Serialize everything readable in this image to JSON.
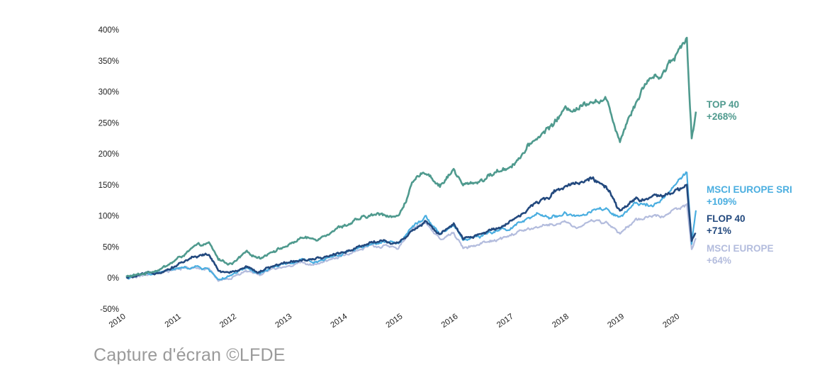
{
  "caption": "Capture d'écran ©LFDE",
  "chart_data": {
    "type": "line",
    "title": "",
    "xlabel": "",
    "ylabel": "",
    "x_tick_labels": [
      "2010",
      "2011",
      "2012",
      "2013",
      "2014",
      "2015",
      "2016",
      "2017",
      "2018",
      "2019",
      "2020"
    ],
    "y_tick_labels": [
      "-50%",
      "0%",
      "50%",
      "100%",
      "150%",
      "200%",
      "250%",
      "300%",
      "350%",
      "400%"
    ],
    "xlim": [
      "2010-01-01",
      "2020-04-15"
    ],
    "ylim": [
      -50,
      400
    ],
    "grid": false,
    "legend": "end-of-line labels on right",
    "series": [
      {
        "name": "TOP 40",
        "end_label": "+268%",
        "color": "#4f9a8e",
        "points": [
          [
            "2010-01-01",
            2
          ],
          [
            "2010-04-01",
            5
          ],
          [
            "2010-07-01",
            12
          ],
          [
            "2010-10-01",
            20
          ],
          [
            "2011-01-01",
            35
          ],
          [
            "2011-04-01",
            50
          ],
          [
            "2011-07-01",
            55
          ],
          [
            "2011-09-01",
            30
          ],
          [
            "2011-12-01",
            22
          ],
          [
            "2012-03-01",
            40
          ],
          [
            "2012-06-01",
            33
          ],
          [
            "2012-09-01",
            45
          ],
          [
            "2012-12-01",
            52
          ],
          [
            "2013-03-01",
            65
          ],
          [
            "2013-06-01",
            62
          ],
          [
            "2013-09-01",
            75
          ],
          [
            "2013-12-01",
            85
          ],
          [
            "2014-03-01",
            92
          ],
          [
            "2014-06-01",
            100
          ],
          [
            "2014-09-01",
            103
          ],
          [
            "2014-12-01",
            98
          ],
          [
            "2015-03-01",
            150
          ],
          [
            "2015-06-01",
            172
          ],
          [
            "2015-09-01",
            150
          ],
          [
            "2015-12-01",
            175
          ],
          [
            "2016-02-01",
            148
          ],
          [
            "2016-06-01",
            158
          ],
          [
            "2016-09-01",
            170
          ],
          [
            "2016-12-01",
            180
          ],
          [
            "2017-03-01",
            200
          ],
          [
            "2017-06-01",
            225
          ],
          [
            "2017-09-01",
            245
          ],
          [
            "2017-12-01",
            270
          ],
          [
            "2018-03-01",
            275
          ],
          [
            "2018-06-01",
            290
          ],
          [
            "2018-09-01",
            285
          ],
          [
            "2018-12-01",
            225
          ],
          [
            "2019-03-01",
            280
          ],
          [
            "2019-06-01",
            320
          ],
          [
            "2019-09-01",
            330
          ],
          [
            "2019-12-01",
            360
          ],
          [
            "2020-02-15",
            390
          ],
          [
            "2020-03-18",
            225
          ],
          [
            "2020-04-15",
            268
          ]
        ]
      },
      {
        "name": "MSCI EUROPE SRI",
        "end_label": "+109%",
        "color": "#4aaee0",
        "points": [
          [
            "2010-01-01",
            0
          ],
          [
            "2010-04-01",
            5
          ],
          [
            "2010-07-01",
            8
          ],
          [
            "2010-10-01",
            12
          ],
          [
            "2011-01-01",
            15
          ],
          [
            "2011-04-01",
            18
          ],
          [
            "2011-07-01",
            14
          ],
          [
            "2011-09-01",
            -2
          ],
          [
            "2011-12-01",
            3
          ],
          [
            "2012-03-01",
            15
          ],
          [
            "2012-06-01",
            6
          ],
          [
            "2012-09-01",
            18
          ],
          [
            "2012-12-01",
            22
          ],
          [
            "2013-03-01",
            28
          ],
          [
            "2013-06-01",
            26
          ],
          [
            "2013-09-01",
            34
          ],
          [
            "2013-12-01",
            40
          ],
          [
            "2014-03-01",
            48
          ],
          [
            "2014-06-01",
            55
          ],
          [
            "2014-09-01",
            57
          ],
          [
            "2014-12-01",
            55
          ],
          [
            "2015-03-01",
            85
          ],
          [
            "2015-06-01",
            100
          ],
          [
            "2015-09-01",
            72
          ],
          [
            "2015-12-01",
            85
          ],
          [
            "2016-02-01",
            62
          ],
          [
            "2016-06-01",
            68
          ],
          [
            "2016-09-01",
            75
          ],
          [
            "2016-12-01",
            80
          ],
          [
            "2017-03-01",
            90
          ],
          [
            "2017-06-01",
            100
          ],
          [
            "2017-09-01",
            98
          ],
          [
            "2017-12-01",
            105
          ],
          [
            "2018-03-01",
            98
          ],
          [
            "2018-06-01",
            108
          ],
          [
            "2018-09-01",
            110
          ],
          [
            "2018-12-01",
            95
          ],
          [
            "2019-03-01",
            115
          ],
          [
            "2019-06-01",
            120
          ],
          [
            "2019-09-01",
            125
          ],
          [
            "2019-12-01",
            148
          ],
          [
            "2020-02-15",
            170
          ],
          [
            "2020-03-18",
            55
          ],
          [
            "2020-04-15",
            109
          ]
        ]
      },
      {
        "name": "FLOP 40",
        "end_label": "+71%",
        "color": "#23497e",
        "points": [
          [
            "2010-01-01",
            0
          ],
          [
            "2010-04-01",
            3
          ],
          [
            "2010-07-01",
            8
          ],
          [
            "2010-10-01",
            15
          ],
          [
            "2011-01-01",
            25
          ],
          [
            "2011-04-01",
            35
          ],
          [
            "2011-07-01",
            38
          ],
          [
            "2011-09-01",
            10
          ],
          [
            "2011-12-01",
            8
          ],
          [
            "2012-03-01",
            20
          ],
          [
            "2012-06-01",
            10
          ],
          [
            "2012-09-01",
            20
          ],
          [
            "2012-12-01",
            25
          ],
          [
            "2013-03-01",
            30
          ],
          [
            "2013-06-01",
            28
          ],
          [
            "2013-09-01",
            35
          ],
          [
            "2013-12-01",
            42
          ],
          [
            "2014-03-01",
            50
          ],
          [
            "2014-06-01",
            58
          ],
          [
            "2014-09-01",
            60
          ],
          [
            "2014-12-01",
            55
          ],
          [
            "2015-03-01",
            78
          ],
          [
            "2015-06-01",
            92
          ],
          [
            "2015-09-01",
            70
          ],
          [
            "2015-12-01",
            85
          ],
          [
            "2016-02-01",
            62
          ],
          [
            "2016-06-01",
            70
          ],
          [
            "2016-09-01",
            80
          ],
          [
            "2016-12-01",
            92
          ],
          [
            "2017-03-01",
            105
          ],
          [
            "2017-06-01",
            120
          ],
          [
            "2017-09-01",
            135
          ],
          [
            "2017-12-01",
            150
          ],
          [
            "2018-03-01",
            155
          ],
          [
            "2018-06-01",
            162
          ],
          [
            "2018-09-01",
            145
          ],
          [
            "2018-12-01",
            105
          ],
          [
            "2019-03-01",
            125
          ],
          [
            "2019-06-01",
            130
          ],
          [
            "2019-09-01",
            128
          ],
          [
            "2019-12-01",
            138
          ],
          [
            "2020-02-15",
            150
          ],
          [
            "2020-03-18",
            60
          ],
          [
            "2020-04-15",
            71
          ]
        ]
      },
      {
        "name": "MSCI EUROPE",
        "end_label": "+64%",
        "color": "#b3bcdd",
        "points": [
          [
            "2010-01-01",
            0
          ],
          [
            "2010-04-01",
            3
          ],
          [
            "2010-07-01",
            6
          ],
          [
            "2010-10-01",
            10
          ],
          [
            "2011-01-01",
            14
          ],
          [
            "2011-04-01",
            17
          ],
          [
            "2011-07-01",
            12
          ],
          [
            "2011-09-01",
            -3
          ],
          [
            "2011-12-01",
            0
          ],
          [
            "2012-03-01",
            12
          ],
          [
            "2012-06-01",
            4
          ],
          [
            "2012-09-01",
            14
          ],
          [
            "2012-12-01",
            18
          ],
          [
            "2013-03-01",
            24
          ],
          [
            "2013-06-01",
            22
          ],
          [
            "2013-09-01",
            30
          ],
          [
            "2013-12-01",
            36
          ],
          [
            "2014-03-01",
            44
          ],
          [
            "2014-06-01",
            50
          ],
          [
            "2014-09-01",
            52
          ],
          [
            "2014-12-01",
            48
          ],
          [
            "2015-03-01",
            78
          ],
          [
            "2015-06-01",
            88
          ],
          [
            "2015-09-01",
            62
          ],
          [
            "2015-12-01",
            72
          ],
          [
            "2016-02-01",
            48
          ],
          [
            "2016-06-01",
            55
          ],
          [
            "2016-09-01",
            60
          ],
          [
            "2016-12-01",
            68
          ],
          [
            "2017-03-01",
            75
          ],
          [
            "2017-06-01",
            82
          ],
          [
            "2017-09-01",
            85
          ],
          [
            "2017-12-01",
            90
          ],
          [
            "2018-03-01",
            82
          ],
          [
            "2018-06-01",
            92
          ],
          [
            "2018-09-01",
            90
          ],
          [
            "2018-12-01",
            70
          ],
          [
            "2019-03-01",
            90
          ],
          [
            "2019-06-01",
            98
          ],
          [
            "2019-09-01",
            100
          ],
          [
            "2019-12-01",
            112
          ],
          [
            "2020-02-15",
            120
          ],
          [
            "2020-03-18",
            45
          ],
          [
            "2020-04-15",
            64
          ]
        ]
      }
    ]
  }
}
